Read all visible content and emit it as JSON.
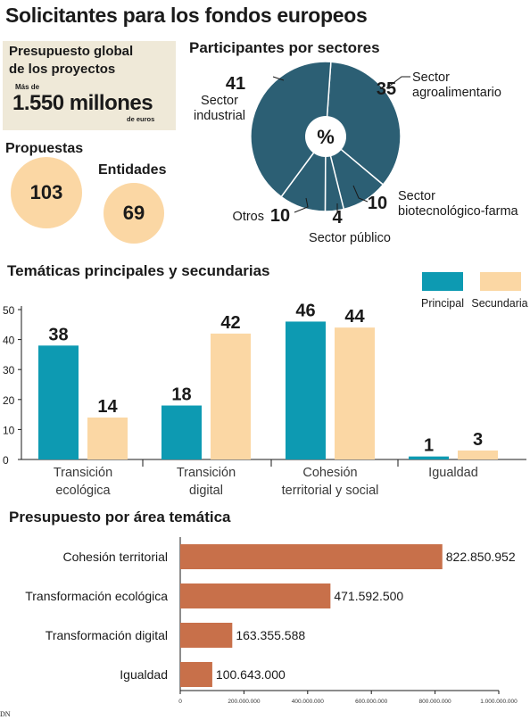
{
  "title": "Solicitantes para los fondos europeos",
  "budget": {
    "title_line1": "Presupuesto global",
    "title_line2": "de los proyectos",
    "prefix": "Más de",
    "amount": "1.550 millones",
    "unit": "de euros"
  },
  "stats": {
    "propuestas_label": "Propuestas",
    "propuestas_value": "103",
    "entidades_label": "Entidades",
    "entidades_value": "69"
  },
  "colors": {
    "pie": "#2c5f74",
    "principal": "#0d9ab2",
    "secundaria": "#fbd7a4",
    "budget_bar": "#c8704a",
    "circle": "#fbd7a4"
  },
  "chart_data": [
    {
      "type": "pie",
      "title": "Participantes por sectores",
      "center_label": "%",
      "slices": [
        {
          "label_line1": "Sector",
          "label_line2": "agroalimentario",
          "value": 35
        },
        {
          "label_line1": "Sector",
          "label_line2": "biotecnológico-farma",
          "value": 10
        },
        {
          "label_line1": "Sector público",
          "label_line2": "",
          "value": 4
        },
        {
          "label_line1": "Otros",
          "label_line2": "",
          "value": 10
        },
        {
          "label_line1": "Sector",
          "label_line2": "industrial",
          "value": 41
        }
      ]
    },
    {
      "type": "bar",
      "title": "Temáticas principales y secundarias",
      "categories": [
        {
          "line1": "Transición",
          "line2": "ecológica"
        },
        {
          "line1": "Transición",
          "line2": "digital"
        },
        {
          "line1": "Cohesión",
          "line2": "territorial y social"
        },
        {
          "line1": "Igualdad",
          "line2": ""
        }
      ],
      "series": [
        {
          "name": "Principal",
          "values": [
            38,
            18,
            46,
            1
          ]
        },
        {
          "name": "Secundaria",
          "values": [
            14,
            42,
            44,
            3
          ]
        }
      ],
      "ylim": [
        0,
        50
      ],
      "yticks": [
        0,
        10,
        20,
        30,
        40,
        50
      ],
      "legend": "top-right"
    },
    {
      "type": "bar",
      "orientation": "horizontal",
      "title": "Presupuesto por área temática",
      "categories": [
        "Cohesión territorial",
        "Transformación ecológica",
        "Transformación digital",
        "Igualdad"
      ],
      "values": [
        822850952,
        471592500,
        163355588,
        100643000
      ],
      "value_labels": [
        "822.850.952",
        "471.592.500",
        "163.355.588",
        "100.643.000"
      ],
      "xlim": [
        0,
        1000000000
      ],
      "xticks": [
        "0",
        "200.000.000",
        "400.000.000",
        "600.000.000",
        "800.000.000",
        "1.000.000.000"
      ]
    }
  ],
  "credit": "DN"
}
